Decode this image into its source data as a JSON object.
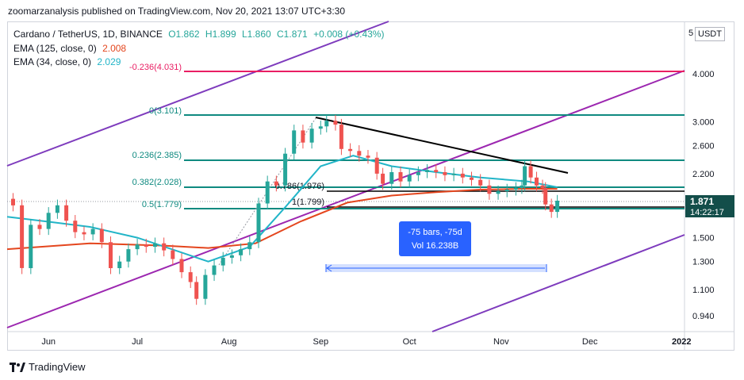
{
  "header": {
    "published_text": "zoomarzanalysis published on TradingView.com, Nov 20, 2021 13:07 UTC+3:30"
  },
  "legend": {
    "symbol": "Cardano / TetherUS, 1D, BINANCE",
    "open": "O1.862",
    "high": "H1.899",
    "low": "L1.860",
    "close": "C1.871",
    "change": "+0.008 (+0.43%)",
    "ema125_label": "EMA (125, close, 0)",
    "ema125_value": "2.008",
    "ema34_label": "EMA (34, close, 0)",
    "ema34_value": "2.029"
  },
  "unit": {
    "label": "USDT",
    "prefix": "5"
  },
  "colors": {
    "up": "#26a69a",
    "down": "#ef5350",
    "ema125": "#e4461e",
    "ema34": "#22b5c8",
    "fib_teal": "#0f8a80",
    "fib_pink": "#e91e63",
    "channel": "#7e3bbd",
    "trend": "#000000",
    "measure": "#2962ff",
    "price_label": "#134e4a"
  },
  "price_label": {
    "value": "1.871",
    "countdown": "14:22:17"
  },
  "measure": {
    "line1": "-75 bars, -75d",
    "line2": "Vol 16.238B"
  },
  "footer": {
    "brand": "TradingView"
  },
  "chart_data": {
    "type": "candlestick",
    "title": "Cardano / TetherUS, 1D, BINANCE",
    "y_scale": "log",
    "ylim": [
      0.85,
      5.0
    ],
    "y_ticks": [
      "4.000",
      "3.000",
      "2.600",
      "2.200",
      "1.871",
      "1.500",
      "1.300",
      "1.100",
      "0.940"
    ],
    "x_ticks": [
      "Jun",
      "Jul",
      "Aug",
      "Sep",
      "Oct",
      "Nov",
      "Dec",
      "2022"
    ],
    "x_range": [
      "2021-05-18",
      "2022-01-02"
    ],
    "fib_levels": [
      {
        "label": "-0.236(4.031)",
        "price": 4.031
      },
      {
        "label": "0(3.101)",
        "price": 3.101
      },
      {
        "label": "0.236(2.385)",
        "price": 2.385
      },
      {
        "label": "0.382(2.028)",
        "price": 2.028
      },
      {
        "label": "0.5(1.779)",
        "price": 1.779
      },
      {
        "label": "0.786(1.976)",
        "price": 1.976
      },
      {
        "label": "1(1.799)",
        "price": 1.799
      }
    ],
    "close_series": [
      {
        "date": "2021-05-20",
        "close": 1.82
      },
      {
        "date": "2021-05-23",
        "close": 1.25
      },
      {
        "date": "2021-05-26",
        "close": 1.62
      },
      {
        "date": "2021-05-29",
        "close": 1.58
      },
      {
        "date": "2021-06-01",
        "close": 1.74
      },
      {
        "date": "2021-06-04",
        "close": 1.82
      },
      {
        "date": "2021-06-07",
        "close": 1.66
      },
      {
        "date": "2021-06-10",
        "close": 1.55
      },
      {
        "date": "2021-06-13",
        "close": 1.53
      },
      {
        "date": "2021-06-16",
        "close": 1.58
      },
      {
        "date": "2021-06-19",
        "close": 1.46
      },
      {
        "date": "2021-06-22",
        "close": 1.25
      },
      {
        "date": "2021-06-25",
        "close": 1.3
      },
      {
        "date": "2021-06-28",
        "close": 1.4
      },
      {
        "date": "2021-07-01",
        "close": 1.44
      },
      {
        "date": "2021-07-04",
        "close": 1.42
      },
      {
        "date": "2021-07-07",
        "close": 1.45
      },
      {
        "date": "2021-07-10",
        "close": 1.39
      },
      {
        "date": "2021-07-13",
        "close": 1.32
      },
      {
        "date": "2021-07-16",
        "close": 1.22
      },
      {
        "date": "2021-07-19",
        "close": 1.15
      },
      {
        "date": "2021-07-21",
        "close": 1.04
      },
      {
        "date": "2021-07-24",
        "close": 1.2
      },
      {
        "date": "2021-07-27",
        "close": 1.27
      },
      {
        "date": "2021-07-30",
        "close": 1.33
      },
      {
        "date": "2021-08-02",
        "close": 1.35
      },
      {
        "date": "2021-08-05",
        "close": 1.4
      },
      {
        "date": "2021-08-08",
        "close": 1.46
      },
      {
        "date": "2021-08-11",
        "close": 1.84
      },
      {
        "date": "2021-08-14",
        "close": 2.1
      },
      {
        "date": "2021-08-17",
        "close": 2.05
      },
      {
        "date": "2021-08-20",
        "close": 2.48
      },
      {
        "date": "2021-08-23",
        "close": 2.85
      },
      {
        "date": "2021-08-26",
        "close": 2.65
      },
      {
        "date": "2021-08-29",
        "close": 2.88
      },
      {
        "date": "2021-09-01",
        "close": 2.92
      },
      {
        "date": "2021-09-03",
        "close": 3.02
      },
      {
        "date": "2021-09-06",
        "close": 2.95
      },
      {
        "date": "2021-09-08",
        "close": 2.55
      },
      {
        "date": "2021-09-11",
        "close": 2.52
      },
      {
        "date": "2021-09-14",
        "close": 2.45
      },
      {
        "date": "2021-09-17",
        "close": 2.42
      },
      {
        "date": "2021-09-20",
        "close": 2.2
      },
      {
        "date": "2021-09-22",
        "close": 2.07
      },
      {
        "date": "2021-09-25",
        "close": 2.22
      },
      {
        "date": "2021-09-28",
        "close": 2.1
      },
      {
        "date": "2021-10-01",
        "close": 2.18
      },
      {
        "date": "2021-10-04",
        "close": 2.22
      },
      {
        "date": "2021-10-07",
        "close": 2.25
      },
      {
        "date": "2021-10-10",
        "close": 2.22
      },
      {
        "date": "2021-10-13",
        "close": 2.18
      },
      {
        "date": "2021-10-16",
        "close": 2.2
      },
      {
        "date": "2021-10-19",
        "close": 2.15
      },
      {
        "date": "2021-10-22",
        "close": 2.12
      },
      {
        "date": "2021-10-25",
        "close": 2.05
      },
      {
        "date": "2021-10-28",
        "close": 1.95
      },
      {
        "date": "2021-10-31",
        "close": 1.98
      },
      {
        "date": "2021-11-03",
        "close": 2.0
      },
      {
        "date": "2021-11-06",
        "close": 2.02
      },
      {
        "date": "2021-11-08",
        "close": 2.05
      },
      {
        "date": "2021-11-09",
        "close": 2.3
      },
      {
        "date": "2021-11-11",
        "close": 2.15
      },
      {
        "date": "2021-11-13",
        "close": 2.05
      },
      {
        "date": "2021-11-15",
        "close": 2.02
      },
      {
        "date": "2021-11-16",
        "close": 1.83
      },
      {
        "date": "2021-11-18",
        "close": 1.75
      },
      {
        "date": "2021-11-20",
        "close": 1.871
      }
    ],
    "ema125": [
      {
        "date": "2021-05-18",
        "value": 1.4
      },
      {
        "date": "2021-06-15",
        "value": 1.45
      },
      {
        "date": "2021-07-10",
        "value": 1.43
      },
      {
        "date": "2021-07-25",
        "value": 1.41
      },
      {
        "date": "2021-08-10",
        "value": 1.45
      },
      {
        "date": "2021-08-25",
        "value": 1.65
      },
      {
        "date": "2021-09-10",
        "value": 1.85
      },
      {
        "date": "2021-09-25",
        "value": 1.93
      },
      {
        "date": "2021-10-10",
        "value": 1.97
      },
      {
        "date": "2021-10-25",
        "value": 2.0
      },
      {
        "date": "2021-11-10",
        "value": 2.01
      },
      {
        "date": "2021-11-20",
        "value": 2.008
      }
    ],
    "ema34": [
      {
        "date": "2021-05-18",
        "value": 1.7
      },
      {
        "date": "2021-06-01",
        "value": 1.65
      },
      {
        "date": "2021-06-15",
        "value": 1.6
      },
      {
        "date": "2021-07-01",
        "value": 1.5
      },
      {
        "date": "2021-07-15",
        "value": 1.38
      },
      {
        "date": "2021-07-25",
        "value": 1.3
      },
      {
        "date": "2021-08-08",
        "value": 1.42
      },
      {
        "date": "2021-08-20",
        "value": 1.8
      },
      {
        "date": "2021-09-01",
        "value": 2.3
      },
      {
        "date": "2021-09-12",
        "value": 2.45
      },
      {
        "date": "2021-09-25",
        "value": 2.3
      },
      {
        "date": "2021-10-10",
        "value": 2.22
      },
      {
        "date": "2021-10-25",
        "value": 2.15
      },
      {
        "date": "2021-11-10",
        "value": 2.1
      },
      {
        "date": "2021-11-20",
        "value": 2.029
      }
    ]
  }
}
